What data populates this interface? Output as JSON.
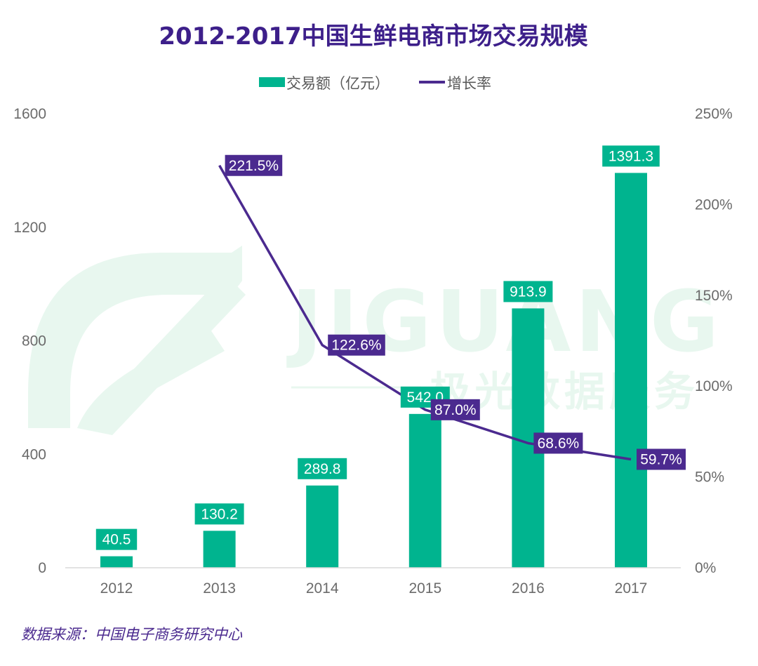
{
  "chart_data": {
    "type": "bar+line",
    "title": "2012-2017中国生鲜电商市场交易规模",
    "categories": [
      "2012",
      "2013",
      "2014",
      "2015",
      "2016",
      "2017"
    ],
    "series": [
      {
        "name": "交易额（亿元）",
        "type": "bar",
        "axis": "left",
        "values": [
          40.5,
          130.2,
          289.8,
          542.0,
          913.9,
          1391.3
        ],
        "labels": [
          "40.5",
          "130.2",
          "289.8",
          "542.0",
          "913.9",
          "1391.3"
        ],
        "color": "#00b48f"
      },
      {
        "name": "增长率",
        "type": "line",
        "axis": "right",
        "values": [
          null,
          221.5,
          122.6,
          87.0,
          68.6,
          59.7
        ],
        "labels": [
          "",
          "221.5%",
          "122.6%",
          "87.0%",
          "68.6%",
          "59.7%"
        ],
        "color": "#4b2a8f"
      }
    ],
    "y_left": {
      "range": [
        0,
        1600
      ],
      "ticks": [
        0,
        400,
        800,
        1200,
        1600
      ],
      "tick_labels": [
        "0",
        "400",
        "800",
        "1200",
        "1600"
      ]
    },
    "y_right": {
      "range": [
        0,
        250
      ],
      "ticks": [
        0,
        50,
        100,
        150,
        200,
        250
      ],
      "tick_labels": [
        "0%",
        "50%",
        "100%",
        "150%",
        "200%",
        "250%"
      ]
    },
    "legend_position": "top-center",
    "grid": false
  },
  "source": "数据来源：中国电子商务研究中心",
  "watermark": {
    "brand": "JIGUANG",
    "cn": "极光数据服务"
  },
  "colors": {
    "title": "#3d1f8a",
    "bar": "#00b48f",
    "line": "#4b2a8f",
    "axis_text": "#6b6b6b",
    "source": "#4b2a8f",
    "watermark": "#e6f6ee"
  }
}
